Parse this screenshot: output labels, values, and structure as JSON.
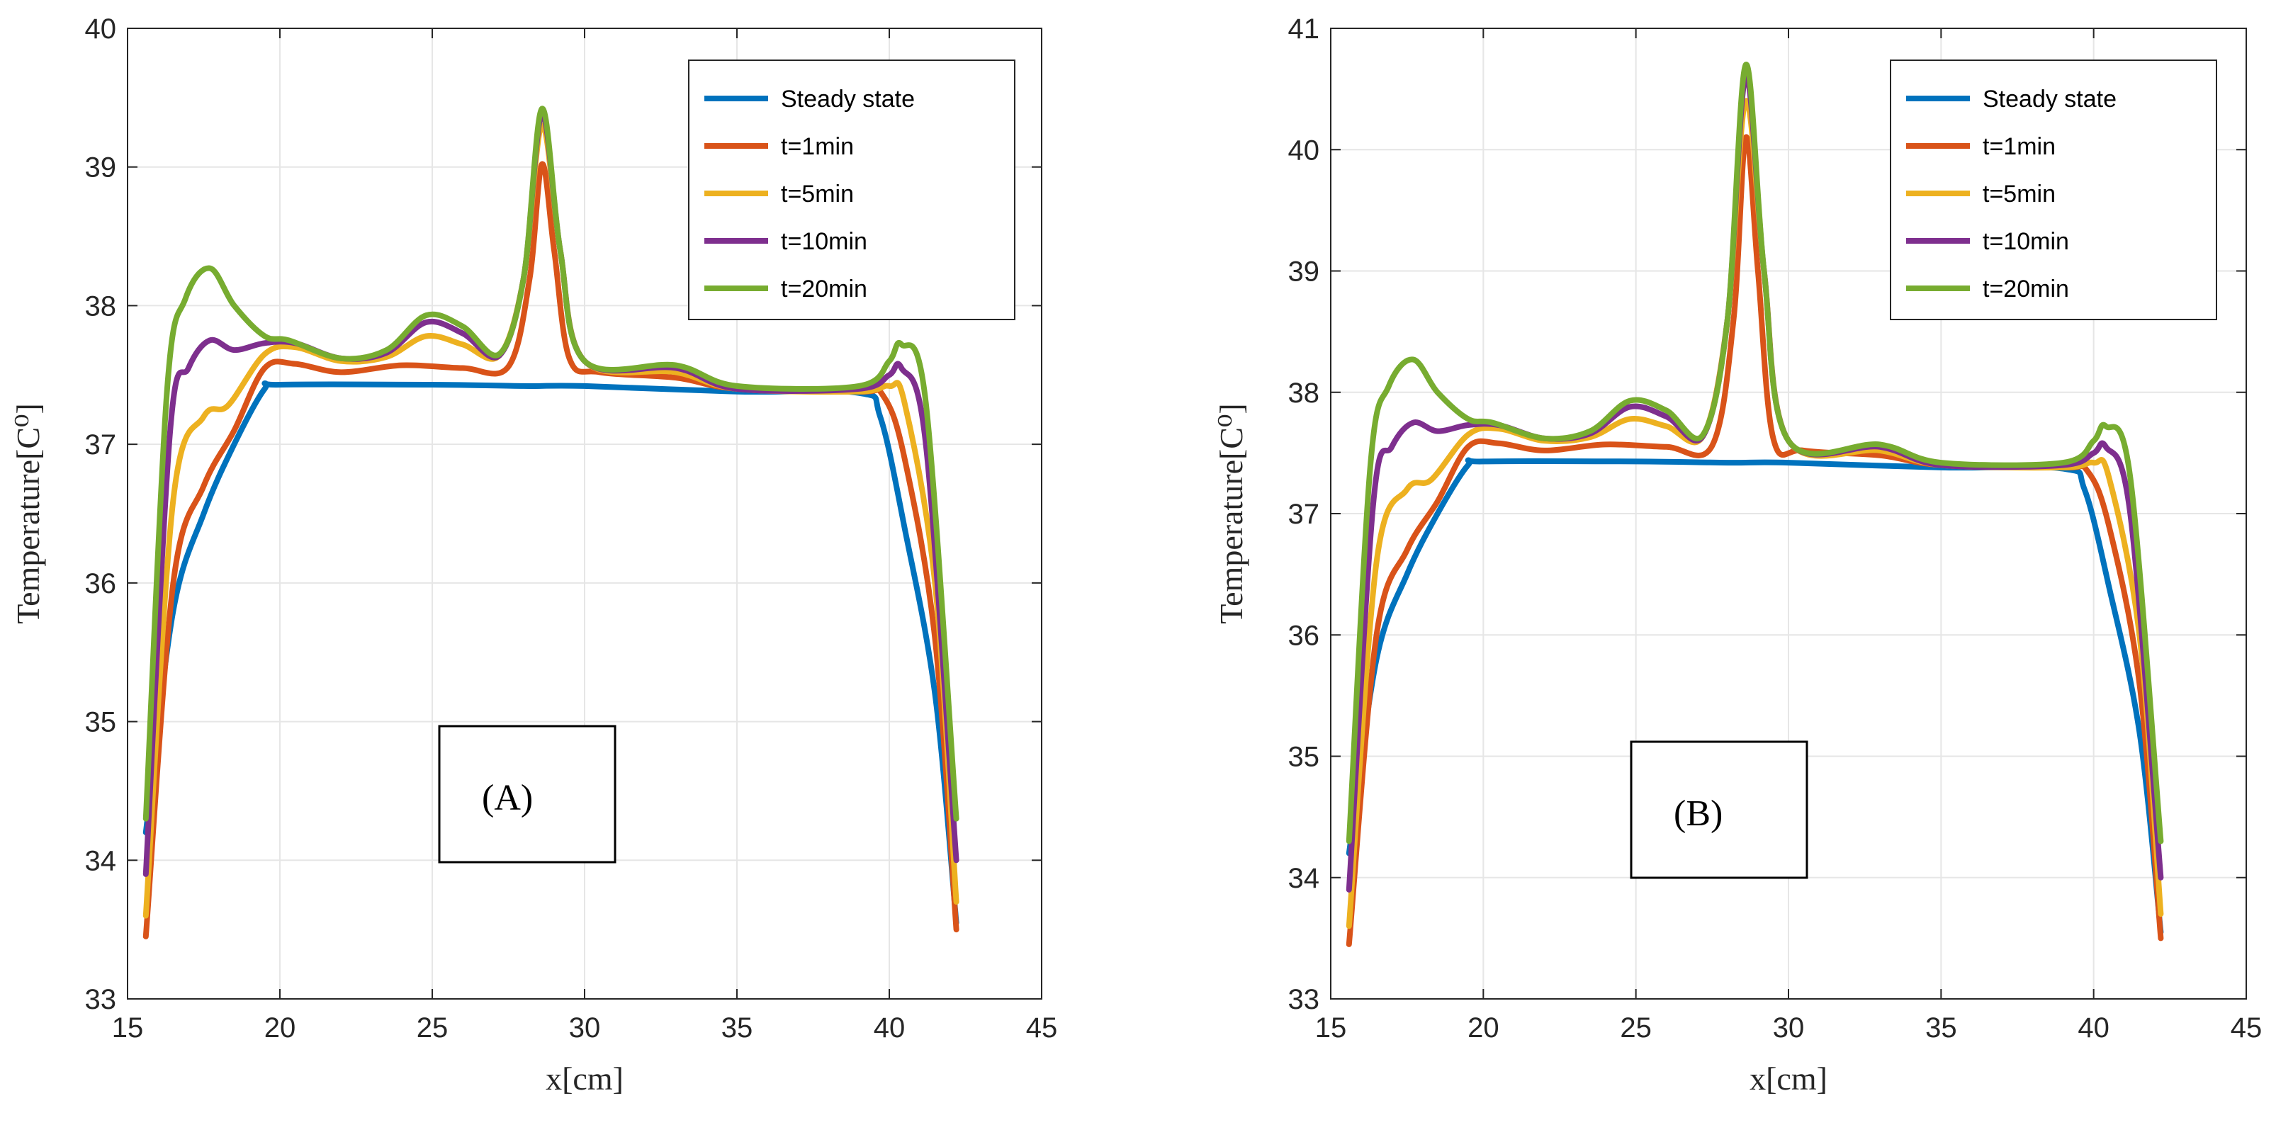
{
  "chart_data": [
    {
      "type": "line",
      "annotation": "(A)",
      "xlabel": "x[cm]",
      "ylabel": "Temperature[C⁰]",
      "xlim": [
        15,
        45
      ],
      "ylim": [
        33,
        40
      ],
      "xticks": [
        "15",
        "20",
        "25",
        "30",
        "35",
        "40",
        "45"
      ],
      "yticks": [
        "33",
        "34",
        "35",
        "36",
        "37",
        "38",
        "39",
        "40"
      ],
      "grid": true,
      "legend_position": "top-right",
      "series": [
        {
          "name": "Steady state",
          "color": "#0072BD",
          "x": [
            15.6,
            16.5,
            17.5,
            18.5,
            19.5,
            20,
            25,
            28,
            30,
            35,
            39,
            39.7,
            40.5,
            41.5,
            42.2
          ],
          "y": [
            34.2,
            35.8,
            36.5,
            37.0,
            37.4,
            37.43,
            37.43,
            37.42,
            37.42,
            37.38,
            37.37,
            37.2,
            36.4,
            35.2,
            33.55
          ]
        },
        {
          "name": "t=1min",
          "color": "#D95319",
          "x": [
            15.6,
            16.5,
            17.5,
            18.5,
            19.5,
            20.5,
            22,
            24,
            26,
            27.5,
            28.2,
            28.6,
            29,
            29.5,
            30.5,
            33,
            35,
            39,
            39.8,
            40.5,
            41.5,
            42.2
          ],
          "y": [
            33.45,
            36.0,
            36.7,
            37.1,
            37.55,
            37.58,
            37.52,
            37.57,
            37.55,
            37.56,
            38.2,
            39.02,
            38.4,
            37.62,
            37.52,
            37.48,
            37.4,
            37.38,
            37.35,
            36.9,
            35.6,
            33.5
          ]
        },
        {
          "name": "t=5min",
          "color": "#EDB120",
          "x": [
            15.6,
            16.5,
            17.5,
            18.3,
            19.5,
            20.5,
            22,
            23.5,
            24.8,
            26,
            27.2,
            28,
            28.6,
            29.2,
            30,
            33,
            35,
            39,
            40,
            40.5,
            41.5,
            42.2
          ],
          "y": [
            33.6,
            36.6,
            37.2,
            37.28,
            37.65,
            37.7,
            37.6,
            37.63,
            37.78,
            37.72,
            37.64,
            38.2,
            39.3,
            38.4,
            37.6,
            37.52,
            37.4,
            37.38,
            37.42,
            37.3,
            36.0,
            33.7
          ]
        },
        {
          "name": "t=10min",
          "color": "#7E2F8E",
          "x": [
            15.6,
            16.4,
            17.0,
            17.7,
            18.5,
            19.5,
            20.5,
            22,
            23.5,
            24.8,
            26,
            27.2,
            28,
            28.6,
            29.2,
            30,
            33,
            35,
            39,
            40,
            40.4,
            41.2,
            42.2
          ],
          "y": [
            33.9,
            37.1,
            37.55,
            37.75,
            37.68,
            37.73,
            37.73,
            37.62,
            37.66,
            37.88,
            37.8,
            37.64,
            38.2,
            39.38,
            38.4,
            37.6,
            37.55,
            37.4,
            37.4,
            37.5,
            37.55,
            37.0,
            34.0
          ]
        },
        {
          "name": "t=20min",
          "color": "#77AC30",
          "x": [
            15.6,
            16.3,
            16.9,
            17.7,
            18.5,
            19.5,
            20.3,
            22,
            23.5,
            24.8,
            26,
            27.2,
            28,
            28.6,
            29.2,
            30,
            33,
            35,
            39,
            40,
            40.4,
            41.2,
            42.2
          ],
          "y": [
            34.3,
            37.4,
            38.05,
            38.27,
            38.0,
            37.78,
            37.75,
            37.62,
            37.68,
            37.93,
            37.85,
            37.65,
            38.2,
            39.42,
            38.4,
            37.6,
            37.57,
            37.42,
            37.42,
            37.6,
            37.72,
            37.3,
            34.3
          ]
        }
      ]
    },
    {
      "type": "line",
      "annotation": "(B)",
      "xlabel": "x[cm]",
      "ylabel": "Temperature[C⁰]",
      "xlim": [
        15,
        45
      ],
      "ylim": [
        33,
        41
      ],
      "xticks": [
        "15",
        "20",
        "25",
        "30",
        "35",
        "40",
        "45"
      ],
      "yticks": [
        "33",
        "34",
        "35",
        "36",
        "37",
        "38",
        "39",
        "40",
        "41"
      ],
      "grid": true,
      "legend_position": "top-right",
      "series": [
        {
          "name": "Steady state",
          "color": "#0072BD",
          "x": [
            15.6,
            16.5,
            17.5,
            18.5,
            19.5,
            20,
            25,
            28,
            30,
            35,
            39,
            39.7,
            40.5,
            41.5,
            42.2
          ],
          "y": [
            34.2,
            35.8,
            36.5,
            37.0,
            37.4,
            37.43,
            37.43,
            37.42,
            37.42,
            37.38,
            37.37,
            37.2,
            36.4,
            35.2,
            33.55
          ]
        },
        {
          "name": "t=1min",
          "color": "#D95319",
          "x": [
            15.6,
            16.5,
            17.5,
            18.5,
            19.5,
            20.5,
            22,
            24,
            26,
            27.5,
            28.2,
            28.6,
            29,
            29.5,
            30.5,
            33,
            35,
            39,
            39.8,
            40.5,
            41.5,
            42.2
          ],
          "y": [
            33.45,
            36.0,
            36.7,
            37.1,
            37.55,
            37.58,
            37.52,
            37.57,
            37.55,
            37.56,
            38.6,
            40.1,
            39.0,
            37.62,
            37.52,
            37.48,
            37.4,
            37.38,
            37.35,
            36.9,
            35.6,
            33.5
          ]
        },
        {
          "name": "t=5min",
          "color": "#EDB120",
          "x": [
            15.6,
            16.5,
            17.5,
            18.3,
            19.5,
            20.5,
            22,
            23.5,
            24.8,
            26,
            27.2,
            28,
            28.6,
            29.2,
            30,
            33,
            35,
            39,
            40,
            40.5,
            41.5,
            42.2
          ],
          "y": [
            33.6,
            36.6,
            37.2,
            37.28,
            37.65,
            37.7,
            37.6,
            37.63,
            37.78,
            37.72,
            37.64,
            38.6,
            40.4,
            39.0,
            37.6,
            37.52,
            37.4,
            37.38,
            37.42,
            37.3,
            36.0,
            33.7
          ]
        },
        {
          "name": "t=10min",
          "color": "#7E2F8E",
          "x": [
            15.6,
            16.4,
            17.0,
            17.7,
            18.5,
            19.5,
            20.5,
            22,
            23.5,
            24.8,
            26,
            27.2,
            28,
            28.6,
            29.2,
            30,
            33,
            35,
            39,
            40,
            40.4,
            41.2,
            42.2
          ],
          "y": [
            33.9,
            37.1,
            37.55,
            37.75,
            37.68,
            37.73,
            37.73,
            37.62,
            37.66,
            37.88,
            37.8,
            37.64,
            38.6,
            40.6,
            39.0,
            37.6,
            37.55,
            37.4,
            37.4,
            37.5,
            37.55,
            37.0,
            34.0
          ]
        },
        {
          "name": "t=20min",
          "color": "#77AC30",
          "x": [
            15.6,
            16.3,
            16.9,
            17.7,
            18.5,
            19.5,
            20.3,
            22,
            23.5,
            24.8,
            26,
            27.2,
            28,
            28.6,
            29.2,
            30,
            33,
            35,
            39,
            40,
            40.4,
            41.2,
            42.2
          ],
          "y": [
            34.3,
            37.4,
            38.05,
            38.27,
            38.0,
            37.78,
            37.75,
            37.62,
            37.68,
            37.93,
            37.85,
            37.65,
            38.6,
            40.7,
            39.0,
            37.6,
            37.57,
            37.42,
            37.42,
            37.6,
            37.72,
            37.3,
            34.3
          ]
        }
      ]
    }
  ]
}
